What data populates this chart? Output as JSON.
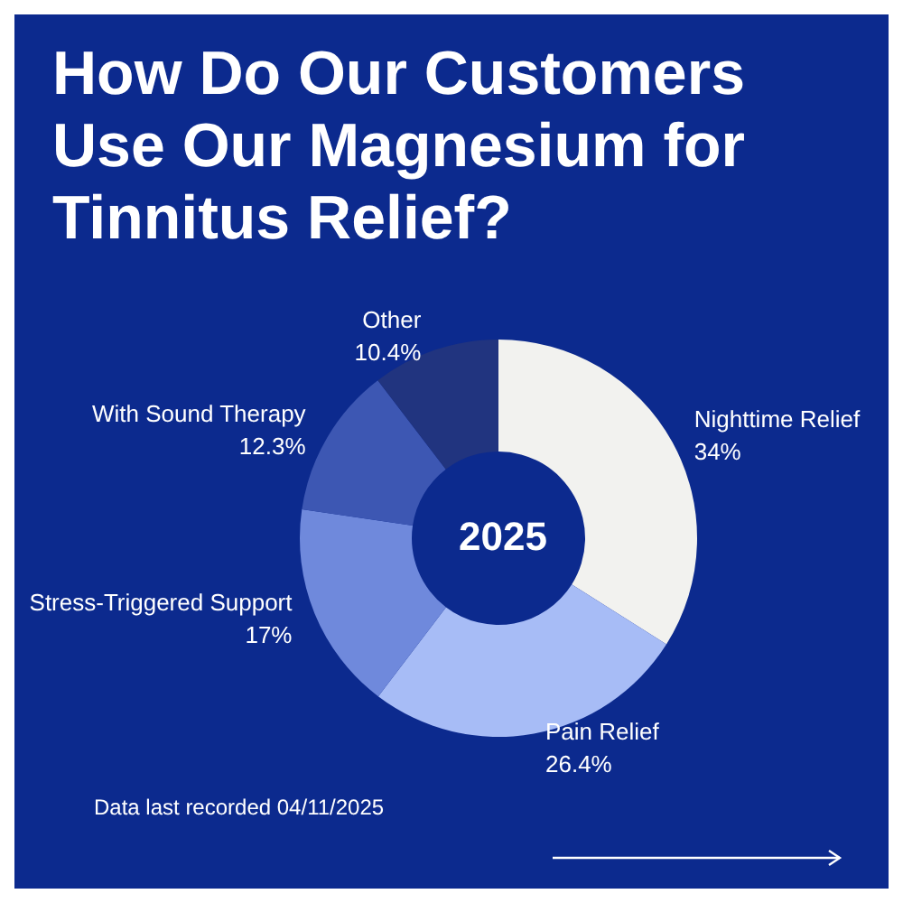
{
  "chart_data": {
    "type": "donut",
    "title": "How Do Our Customers Use Our Magnesium for Tinnitus Relief?",
    "categories": [
      "Nighttime Relief",
      "Pain Relief",
      "Stress-Triggered Support",
      "With Sound Therapy",
      "Other"
    ],
    "values": [
      34,
      26.4,
      17,
      12.3,
      10.4
    ],
    "colors": [
      "#f2f2ef",
      "#a7bcf6",
      "#6f89dc",
      "#3d57b3",
      "#21347f"
    ],
    "value_labels": [
      "34%",
      "26.4%",
      "17%",
      "12.3%",
      "10.4%"
    ],
    "legend": false,
    "annotations": [
      "2025",
      "Data last recorded 04/11/2025"
    ]
  }
}
